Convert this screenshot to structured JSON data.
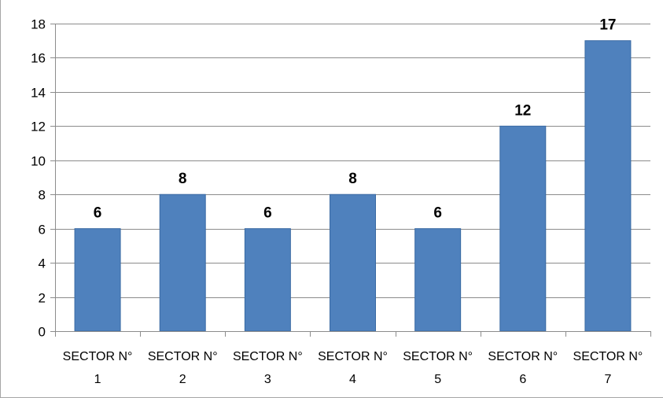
{
  "chart_data": {
    "type": "bar",
    "title": "",
    "xlabel": "",
    "ylabel": "",
    "categories": [
      [
        "SECTOR N°",
        "1"
      ],
      [
        "SECTOR N°",
        "2"
      ],
      [
        "SECTOR N°",
        "3"
      ],
      [
        "SECTOR N°",
        "4"
      ],
      [
        "SECTOR N°",
        "5"
      ],
      [
        "SECTOR N°",
        "6"
      ],
      [
        "SECTOR N°",
        "7"
      ]
    ],
    "values": [
      6,
      8,
      6,
      8,
      6,
      12,
      17
    ],
    "data_labels": [
      "6",
      "8",
      "6",
      "8",
      "6",
      "12",
      "17"
    ],
    "ylim": [
      0,
      18
    ],
    "y_ticks": [
      "0",
      "2",
      "4",
      "6",
      "8",
      "10",
      "12",
      "14",
      "16",
      "18"
    ],
    "grid": true,
    "legend": "none",
    "bar_color": "#4f81bd",
    "bar_edge_color": "#3a6aa3"
  }
}
